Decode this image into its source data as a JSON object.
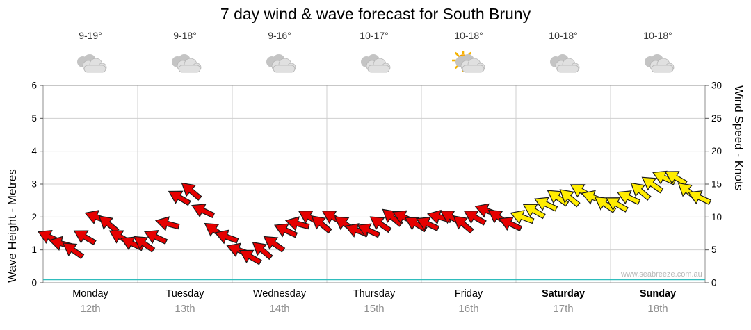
{
  "title": "7 day wind & wave forecast for South Bruny",
  "watermark": "www.seabreeze.com.au",
  "axes": {
    "left_label": "Wave Height - Metres",
    "right_label": "Wind Speed - Knots"
  },
  "days": [
    {
      "name": "Monday",
      "date": "12th",
      "temp": "9-19°",
      "icon": "cloudy",
      "weekend": false
    },
    {
      "name": "Tuesday",
      "date": "13th",
      "temp": "9-18°",
      "icon": "cloudy",
      "weekend": false
    },
    {
      "name": "Wednesday",
      "date": "14th",
      "temp": "9-16°",
      "icon": "cloudy",
      "weekend": false
    },
    {
      "name": "Thursday",
      "date": "15th",
      "temp": "10-17°",
      "icon": "cloudy",
      "weekend": false
    },
    {
      "name": "Friday",
      "date": "16th",
      "temp": "10-18°",
      "icon": "partly-cloudy",
      "weekend": false
    },
    {
      "name": "Saturday",
      "date": "17th",
      "temp": "10-18°",
      "icon": "cloudy",
      "weekend": true
    },
    {
      "name": "Sunday",
      "date": "18th",
      "temp": "10-18°",
      "icon": "cloudy",
      "weekend": true
    }
  ],
  "chart_data": {
    "type": "scatter",
    "title": "7 day wind & wave forecast for South Bruny",
    "x_categories": [
      "Monday 12th",
      "Tuesday 13th",
      "Wednesday 14th",
      "Thursday 15th",
      "Friday 16th",
      "Saturday 17th",
      "Sunday 18th"
    ],
    "points_per_day": 8,
    "grid": true,
    "left_axis": {
      "label": "Wave Height - Metres",
      "min": 0,
      "max": 6,
      "ticks": [
        0,
        1,
        2,
        3,
        4,
        5,
        6
      ]
    },
    "right_axis": {
      "label": "Wind Speed - Knots",
      "min": 0,
      "max": 30,
      "ticks": [
        0,
        5,
        10,
        15,
        20,
        25,
        30
      ]
    },
    "series": [
      {
        "name": "Wind speed & direction",
        "marker": "wind-arrow",
        "axis": "right",
        "unit": "knots",
        "day_colors": [
          "#e60000",
          "#e60000",
          "#e60000",
          "#e60000",
          "#e60000",
          "#ffec00",
          "#ffec00"
        ],
        "knots": [
          [
            7,
            6,
            5,
            7,
            10,
            9,
            7,
            6
          ],
          [
            6,
            7,
            9,
            13,
            14,
            11,
            8,
            7
          ],
          [
            5,
            4,
            5,
            6,
            8,
            9,
            10,
            9
          ],
          [
            10,
            9,
            8,
            8,
            9,
            10,
            10,
            9
          ],
          [
            9,
            10,
            10,
            9,
            10,
            11,
            10,
            9
          ],
          [
            10,
            11,
            12,
            13,
            13,
            14,
            13,
            12
          ],
          [
            12,
            13,
            14,
            15,
            16,
            16,
            14,
            13
          ]
        ],
        "directions_deg": [
          [
            205,
            195,
            215,
            210,
            200,
            220,
            210,
            205
          ],
          [
            215,
            205,
            195,
            210,
            220,
            205,
            215,
            200
          ],
          [
            200,
            210,
            220,
            215,
            205,
            195,
            210,
            220
          ],
          [
            210,
            215,
            200,
            205,
            215,
            220,
            205,
            210
          ],
          [
            205,
            195,
            210,
            220,
            210,
            200,
            215,
            205
          ],
          [
            200,
            210,
            205,
            215,
            220,
            210,
            200,
            215
          ],
          [
            210,
            205,
            220,
            215,
            205,
            210,
            220,
            205
          ]
        ]
      },
      {
        "name": "Wave height",
        "type": "line",
        "axis": "left",
        "unit": "m",
        "color": "#2fbdbd",
        "constant_value_m": 0.1
      }
    ]
  }
}
